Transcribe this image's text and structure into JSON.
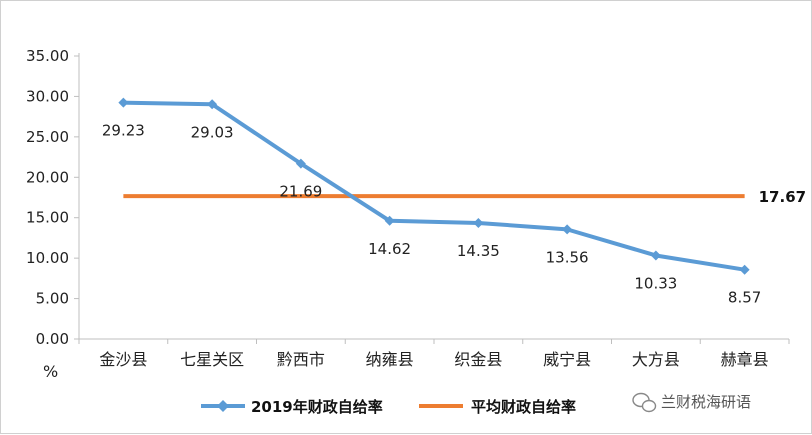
{
  "chart_data": {
    "type": "line",
    "categories": [
      "金沙县",
      "七星关区",
      "黔西市",
      "纳雍县",
      "织金县",
      "威宁县",
      "大方县",
      "赫章县"
    ],
    "series": [
      {
        "name": "2019年财政自给率",
        "values": [
          29.23,
          29.03,
          21.69,
          14.62,
          14.35,
          13.56,
          10.33,
          8.57
        ],
        "color": "#5b9bd5"
      },
      {
        "name": "平均财政自给率",
        "values": [
          17.67,
          17.67,
          17.67,
          17.67,
          17.67,
          17.67,
          17.67,
          17.67
        ],
        "color": "#ed7d31"
      }
    ],
    "data_labels": [
      "29.23",
      "29.03",
      "21.69",
      "14.62",
      "14.35",
      "13.56",
      "10.33",
      "8.57"
    ],
    "average_label": "17.67",
    "ylim": [
      0,
      35
    ],
    "yticks": [
      "0.00",
      "5.00",
      "10.00",
      "15.00",
      "20.00",
      "25.00",
      "30.00",
      "35.00"
    ],
    "ylabel_unit": "%",
    "grid": false,
    "legend_position": "bottom"
  },
  "watermark": {
    "text": "兰财税海研语",
    "icon": "wechat-icon"
  }
}
